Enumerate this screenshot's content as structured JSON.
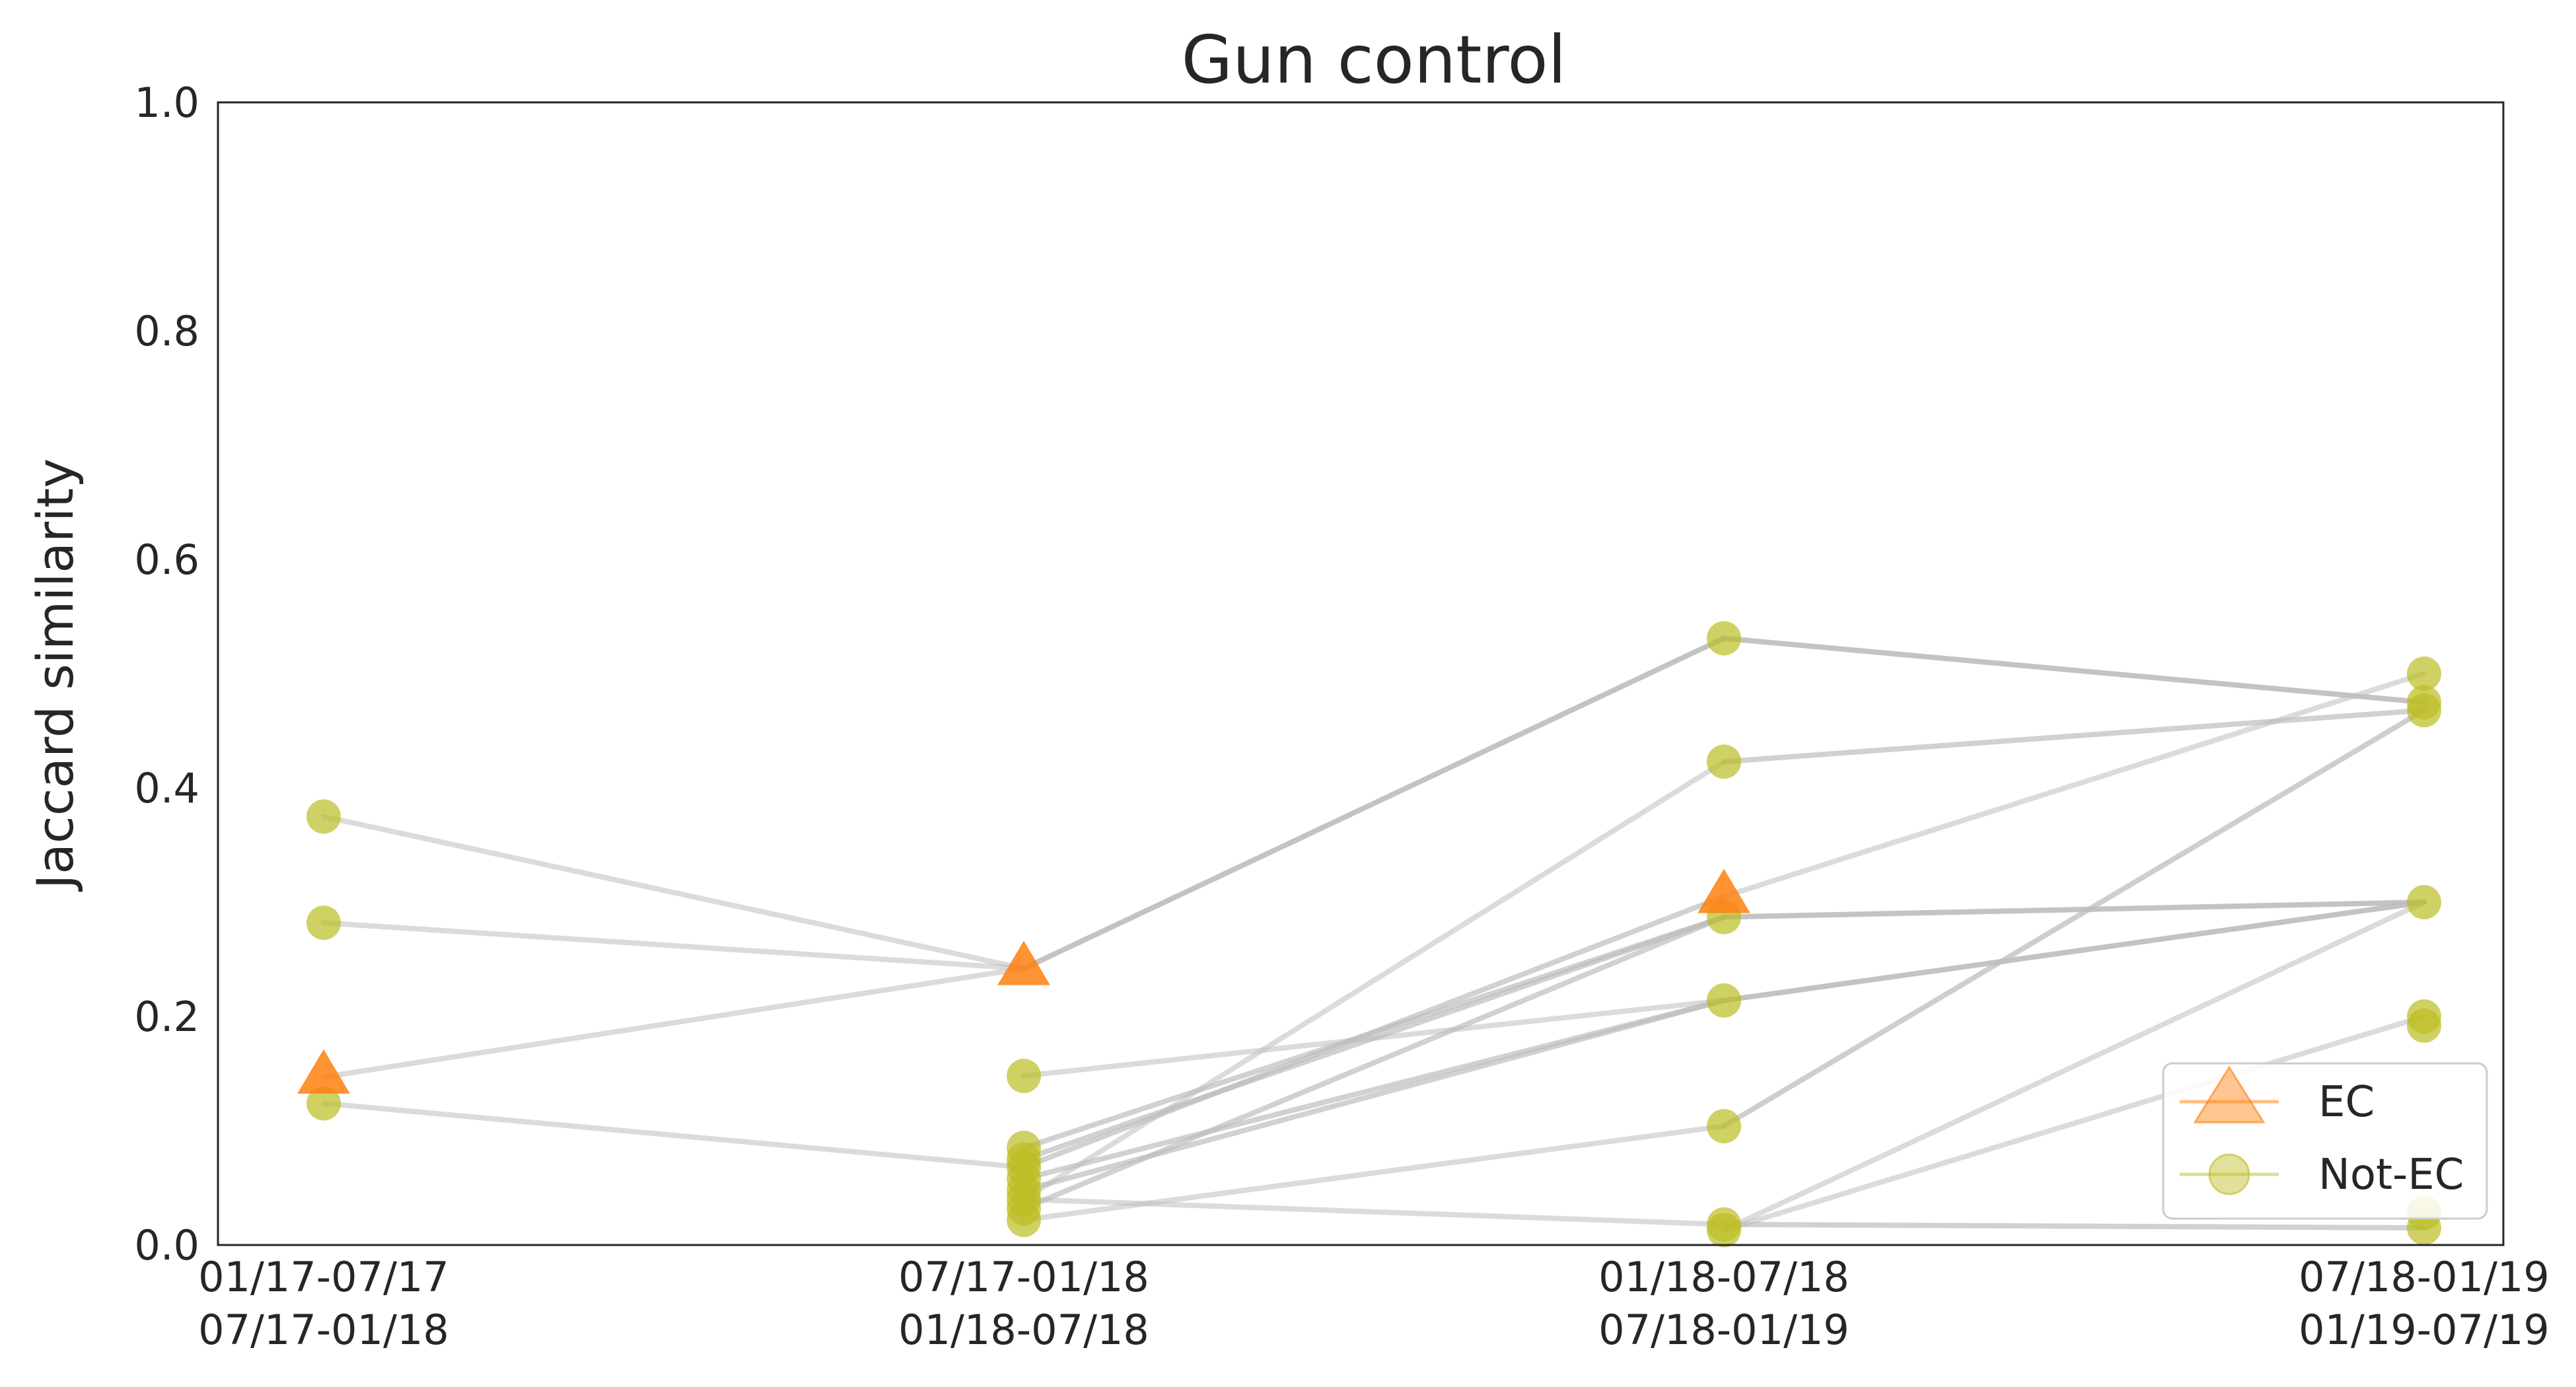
{
  "chart_data": {
    "type": "line",
    "title": "Gun control",
    "ylabel": "Jaccard similarity",
    "xlabel": "",
    "ylim": [
      0,
      1
    ],
    "yticks": [
      "0.0",
      "0.2",
      "0.4",
      "0.6",
      "0.8",
      "1.0"
    ],
    "categories": [
      [
        "01/17-07/17",
        "07/17-01/18"
      ],
      [
        "07/17-01/18",
        "01/18-07/18"
      ],
      [
        "01/18-07/18",
        "07/18-01/19"
      ],
      [
        "07/18-01/19",
        "01/19-07/19"
      ]
    ],
    "grid": false,
    "legend": {
      "position": "lower right",
      "entries": [
        {
          "label": "EC",
          "marker": "triangle",
          "color": "#ff7f0e"
        },
        {
          "label": "Not-EC",
          "marker": "circle",
          "color": "#bcbd22"
        }
      ]
    },
    "colors": {
      "ec": "#ff7f0e",
      "not_ec": "#bcbd22",
      "connector": "#bdbdbd"
    },
    "points": [
      {
        "x": 0,
        "y": 0.375,
        "group": "Not-EC"
      },
      {
        "x": 0,
        "y": 0.282,
        "group": "Not-EC"
      },
      {
        "x": 0,
        "y": 0.147,
        "group": "EC"
      },
      {
        "x": 0,
        "y": 0.124,
        "group": "Not-EC"
      },
      {
        "x": 1,
        "y": 0.242,
        "group": "EC"
      },
      {
        "x": 1,
        "y": 0.148,
        "group": "Not-EC"
      },
      {
        "x": 1,
        "y": 0.085,
        "group": "Not-EC"
      },
      {
        "x": 1,
        "y": 0.075,
        "group": "Not-EC"
      },
      {
        "x": 1,
        "y": 0.068,
        "group": "Not-EC"
      },
      {
        "x": 1,
        "y": 0.058,
        "group": "Not-EC"
      },
      {
        "x": 1,
        "y": 0.048,
        "group": "Not-EC"
      },
      {
        "x": 1,
        "y": 0.04,
        "group": "Not-EC"
      },
      {
        "x": 1,
        "y": 0.032,
        "group": "Not-EC"
      },
      {
        "x": 1,
        "y": 0.022,
        "group": "Not-EC"
      },
      {
        "x": 2,
        "y": 0.531,
        "group": "Not-EC"
      },
      {
        "x": 2,
        "y": 0.423,
        "group": "Not-EC"
      },
      {
        "x": 2,
        "y": 0.305,
        "group": "EC"
      },
      {
        "x": 2,
        "y": 0.287,
        "group": "Not-EC"
      },
      {
        "x": 2,
        "y": 0.214,
        "group": "Not-EC"
      },
      {
        "x": 2,
        "y": 0.104,
        "group": "Not-EC"
      },
      {
        "x": 2,
        "y": 0.018,
        "group": "Not-EC"
      },
      {
        "x": 2,
        "y": 0.013,
        "group": "Not-EC"
      },
      {
        "x": 3,
        "y": 0.5,
        "group": "Not-EC"
      },
      {
        "x": 3,
        "y": 0.475,
        "group": "Not-EC"
      },
      {
        "x": 3,
        "y": 0.468,
        "group": "Not-EC"
      },
      {
        "x": 3,
        "y": 0.3,
        "group": "Not-EC"
      },
      {
        "x": 3,
        "y": 0.2,
        "group": "Not-EC"
      },
      {
        "x": 3,
        "y": 0.192,
        "group": "Not-EC"
      },
      {
        "x": 3,
        "y": 0.028,
        "group": "Not-EC"
      },
      {
        "x": 3,
        "y": 0.015,
        "group": "Not-EC"
      }
    ],
    "connections": [
      {
        "from": [
          0,
          0.375
        ],
        "to": [
          1,
          0.242
        ],
        "opacity": 0.55
      },
      {
        "from": [
          0,
          0.282
        ],
        "to": [
          1,
          0.242
        ],
        "opacity": 0.55
      },
      {
        "from": [
          0,
          0.147
        ],
        "to": [
          1,
          0.242
        ],
        "opacity": 0.55
      },
      {
        "from": [
          0,
          0.124
        ],
        "to": [
          1,
          0.068
        ],
        "opacity": 0.55
      },
      {
        "from": [
          1,
          0.242
        ],
        "to": [
          2,
          0.531
        ],
        "opacity": 0.9
      },
      {
        "from": [
          1,
          0.148
        ],
        "to": [
          2,
          0.214
        ],
        "opacity": 0.55
      },
      {
        "from": [
          1,
          0.085
        ],
        "to": [
          2,
          0.287
        ],
        "opacity": 0.7
      },
      {
        "from": [
          1,
          0.075
        ],
        "to": [
          2,
          0.287
        ],
        "opacity": 0.7
      },
      {
        "from": [
          1,
          0.068
        ],
        "to": [
          2,
          0.305
        ],
        "opacity": 0.7
      },
      {
        "from": [
          1,
          0.058
        ],
        "to": [
          2,
          0.214
        ],
        "opacity": 0.7
      },
      {
        "from": [
          1,
          0.048
        ],
        "to": [
          2,
          0.214
        ],
        "opacity": 0.7
      },
      {
        "from": [
          1,
          0.04
        ],
        "to": [
          2,
          0.423
        ],
        "opacity": 0.55
      },
      {
        "from": [
          1,
          0.04
        ],
        "to": [
          2,
          0.018
        ],
        "opacity": 0.55
      },
      {
        "from": [
          1,
          0.032
        ],
        "to": [
          2,
          0.287
        ],
        "opacity": 0.7
      },
      {
        "from": [
          1,
          0.022
        ],
        "to": [
          2,
          0.104
        ],
        "opacity": 0.55
      },
      {
        "from": [
          2,
          0.531
        ],
        "to": [
          3,
          0.475
        ],
        "opacity": 0.9
      },
      {
        "from": [
          2,
          0.423
        ],
        "to": [
          3,
          0.468
        ],
        "opacity": 0.7
      },
      {
        "from": [
          2,
          0.305
        ],
        "to": [
          3,
          0.5
        ],
        "opacity": 0.55
      },
      {
        "from": [
          2,
          0.287
        ],
        "to": [
          3,
          0.3
        ],
        "opacity": 0.9
      },
      {
        "from": [
          2,
          0.214
        ],
        "to": [
          3,
          0.3
        ],
        "opacity": 0.9
      },
      {
        "from": [
          2,
          0.104
        ],
        "to": [
          3,
          0.468
        ],
        "opacity": 0.75
      },
      {
        "from": [
          2,
          0.018
        ],
        "to": [
          3,
          0.015
        ],
        "opacity": 0.7
      },
      {
        "from": [
          2,
          0.013
        ],
        "to": [
          3,
          0.3
        ],
        "opacity": 0.55
      },
      {
        "from": [
          2,
          0.013
        ],
        "to": [
          3,
          0.2
        ],
        "opacity": 0.55
      }
    ]
  }
}
